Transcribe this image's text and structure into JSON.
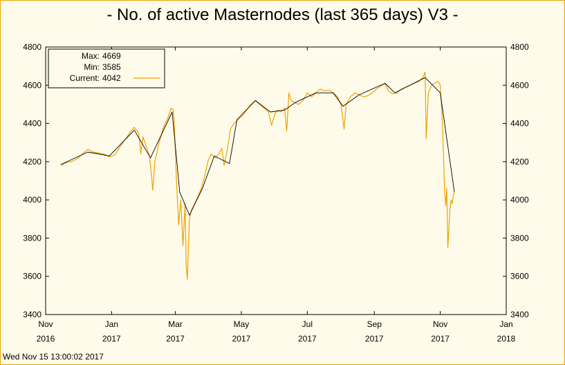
{
  "title": "- No. of active Masternodes (last 365 days) V3 -",
  "timestamp": "Wed Nov 15 13:00:02 2017",
  "colors": {
    "background": "#fffbea",
    "raw_series": "#f0a000",
    "smoothed_series": "#000000",
    "frame": "#f0a000"
  },
  "legend": {
    "max_label": "Max:",
    "max_value": "4669",
    "min_label": "Min:",
    "min_value": "3585",
    "current_label": "Current:",
    "current_value": "4042"
  },
  "chart_data": {
    "type": "line",
    "title": "- No. of active Masternodes (last 365 days) V3 -",
    "xlabel": "",
    "ylabel": "",
    "ylim": [
      3400,
      4800
    ],
    "y_ticks": [
      3400,
      3600,
      3800,
      4000,
      4200,
      4400,
      4600,
      4800
    ],
    "x_ticks": [
      {
        "month": "Nov",
        "year": "2016"
      },
      {
        "month": "Jan",
        "year": "2017"
      },
      {
        "month": "Mar",
        "year": "2017"
      },
      {
        "month": "May",
        "year": "2017"
      },
      {
        "month": "Jul",
        "year": "2017"
      },
      {
        "month": "Sep",
        "year": "2017"
      },
      {
        "month": "Nov",
        "year": "2017"
      },
      {
        "month": "Jan",
        "year": "2018"
      }
    ],
    "xlim": [
      "2016-11-01",
      "2018-01-01"
    ],
    "grid": false,
    "legend_position": "top-left",
    "series": [
      {
        "name": "Current",
        "style": "raw",
        "points": [
          [
            "2016-11-15",
            4180
          ],
          [
            "2016-11-20",
            4195
          ],
          [
            "2016-11-25",
            4200
          ],
          [
            "2016-11-30",
            4215
          ],
          [
            "2016-12-05",
            4240
          ],
          [
            "2016-12-10",
            4265
          ],
          [
            "2016-12-15",
            4250
          ],
          [
            "2016-12-20",
            4245
          ],
          [
            "2016-12-25",
            4240
          ],
          [
            "2016-12-30",
            4225
          ],
          [
            "2017-01-04",
            4235
          ],
          [
            "2017-01-09",
            4280
          ],
          [
            "2017-01-14",
            4320
          ],
          [
            "2017-01-19",
            4360
          ],
          [
            "2017-01-22",
            4380
          ],
          [
            "2017-01-26",
            4350
          ],
          [
            "2017-01-28",
            4240
          ],
          [
            "2017-01-30",
            4330
          ],
          [
            "2017-02-02",
            4280
          ],
          [
            "2017-02-05",
            4230
          ],
          [
            "2017-02-07",
            4120
          ],
          [
            "2017-02-08",
            4050
          ],
          [
            "2017-02-10",
            4200
          ],
          [
            "2017-02-14",
            4300
          ],
          [
            "2017-02-18",
            4380
          ],
          [
            "2017-02-22",
            4430
          ],
          [
            "2017-02-25",
            4480
          ],
          [
            "2017-02-27",
            4470
          ],
          [
            "2017-02-28",
            4400
          ],
          [
            "2017-03-02",
            4100
          ],
          [
            "2017-03-04",
            3870
          ],
          [
            "2017-03-06",
            4000
          ],
          [
            "2017-03-08",
            3760
          ],
          [
            "2017-03-10",
            3980
          ],
          [
            "2017-03-11",
            3660
          ],
          [
            "2017-03-12",
            3585
          ],
          [
            "2017-03-14",
            3900
          ],
          [
            "2017-03-16",
            3950
          ],
          [
            "2017-03-19",
            3980
          ],
          [
            "2017-03-22",
            4020
          ],
          [
            "2017-03-25",
            4060
          ],
          [
            "2017-03-28",
            4120
          ],
          [
            "2017-03-31",
            4200
          ],
          [
            "2017-04-03",
            4240
          ],
          [
            "2017-04-07",
            4220
          ],
          [
            "2017-04-10",
            4240
          ],
          [
            "2017-04-13",
            4270
          ],
          [
            "2017-04-15",
            4180
          ],
          [
            "2017-04-18",
            4260
          ],
          [
            "2017-04-21",
            4370
          ],
          [
            "2017-04-24",
            4400
          ],
          [
            "2017-04-28",
            4420
          ],
          [
            "2017-05-02",
            4440
          ],
          [
            "2017-05-06",
            4470
          ],
          [
            "2017-05-10",
            4500
          ],
          [
            "2017-05-14",
            4520
          ],
          [
            "2017-05-18",
            4500
          ],
          [
            "2017-05-22",
            4480
          ],
          [
            "2017-05-26",
            4460
          ],
          [
            "2017-05-29",
            4390
          ],
          [
            "2017-06-01",
            4450
          ],
          [
            "2017-06-04",
            4470
          ],
          [
            "2017-06-07",
            4460
          ],
          [
            "2017-06-10",
            4480
          ],
          [
            "2017-06-12",
            4360
          ],
          [
            "2017-06-14",
            4560
          ],
          [
            "2017-06-16",
            4520
          ],
          [
            "2017-06-19",
            4510
          ],
          [
            "2017-06-23",
            4500
          ],
          [
            "2017-06-27",
            4520
          ],
          [
            "2017-07-01",
            4560
          ],
          [
            "2017-07-05",
            4540
          ],
          [
            "2017-07-09",
            4560
          ],
          [
            "2017-07-13",
            4580
          ],
          [
            "2017-07-17",
            4570
          ],
          [
            "2017-07-21",
            4575
          ],
          [
            "2017-07-25",
            4560
          ],
          [
            "2017-07-29",
            4540
          ],
          [
            "2017-08-01",
            4500
          ],
          [
            "2017-08-03",
            4420
          ],
          [
            "2017-08-04",
            4370
          ],
          [
            "2017-08-06",
            4500
          ],
          [
            "2017-08-10",
            4540
          ],
          [
            "2017-08-14",
            4560
          ],
          [
            "2017-08-18",
            4550
          ],
          [
            "2017-08-22",
            4540
          ],
          [
            "2017-08-26",
            4545
          ],
          [
            "2017-08-30",
            4560
          ],
          [
            "2017-09-03",
            4580
          ],
          [
            "2017-09-07",
            4595
          ],
          [
            "2017-09-11",
            4610
          ],
          [
            "2017-09-14",
            4570
          ],
          [
            "2017-09-18",
            4555
          ],
          [
            "2017-09-22",
            4560
          ],
          [
            "2017-09-26",
            4580
          ],
          [
            "2017-09-30",
            4590
          ],
          [
            "2017-10-04",
            4600
          ],
          [
            "2017-10-08",
            4610
          ],
          [
            "2017-10-12",
            4620
          ],
          [
            "2017-10-16",
            4640
          ],
          [
            "2017-10-18",
            4669
          ],
          [
            "2017-10-19",
            4320
          ],
          [
            "2017-10-21",
            4560
          ],
          [
            "2017-10-24",
            4600
          ],
          [
            "2017-10-27",
            4610
          ],
          [
            "2017-10-30",
            4620
          ],
          [
            "2017-11-01",
            4600
          ],
          [
            "2017-11-03",
            4400
          ],
          [
            "2017-11-05",
            4050
          ],
          [
            "2017-11-06",
            3970
          ],
          [
            "2017-11-07",
            4060
          ],
          [
            "2017-11-08",
            3750
          ],
          [
            "2017-11-09",
            3850
          ],
          [
            "2017-11-10",
            3950
          ],
          [
            "2017-11-11",
            4000
          ],
          [
            "2017-11-12",
            3980
          ],
          [
            "2017-11-13",
            4020
          ],
          [
            "2017-11-14",
            4042
          ]
        ]
      },
      {
        "name": "",
        "style": "smoothed",
        "points": [
          [
            "2016-11-15",
            4185
          ],
          [
            "2016-12-10",
            4250
          ],
          [
            "2016-12-30",
            4230
          ],
          [
            "2017-01-22",
            4365
          ],
          [
            "2017-02-06",
            4220
          ],
          [
            "2017-02-26",
            4460
          ],
          [
            "2017-03-05",
            4040
          ],
          [
            "2017-03-14",
            3920
          ],
          [
            "2017-03-26",
            4060
          ],
          [
            "2017-04-06",
            4230
          ],
          [
            "2017-04-20",
            4190
          ],
          [
            "2017-04-27",
            4420
          ],
          [
            "2017-05-14",
            4520
          ],
          [
            "2017-05-28",
            4460
          ],
          [
            "2017-06-10",
            4470
          ],
          [
            "2017-06-20",
            4510
          ],
          [
            "2017-07-09",
            4560
          ],
          [
            "2017-07-25",
            4560
          ],
          [
            "2017-08-03",
            4490
          ],
          [
            "2017-08-18",
            4550
          ],
          [
            "2017-09-11",
            4610
          ],
          [
            "2017-09-20",
            4560
          ],
          [
            "2017-10-18",
            4640
          ],
          [
            "2017-10-25",
            4600
          ],
          [
            "2017-11-01",
            4560
          ],
          [
            "2017-11-14",
            4042
          ]
        ]
      }
    ]
  }
}
